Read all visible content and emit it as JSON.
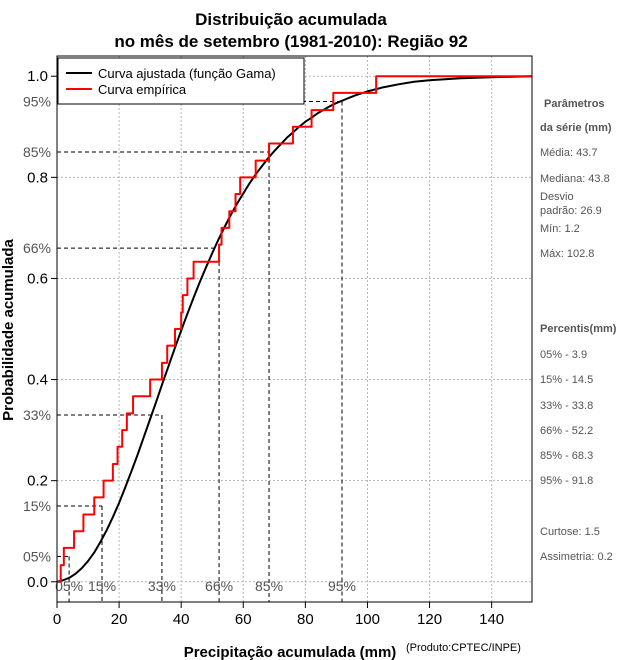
{
  "chart_data": {
    "type": "line",
    "title_line1": "Distribuição acumulada",
    "title_line2": "no mês de setembro (1981-2010): Região 92",
    "xlabel": "Precipitação acumulada (mm)",
    "xlabel_note": "(Produto:CPTEC/INPE)",
    "ylabel": "Probabilidade acumulada",
    "xlim": [
      0,
      153
    ],
    "ylim": [
      -0.04,
      1.04
    ],
    "x_ticks": [
      0,
      20,
      40,
      60,
      80,
      100,
      120,
      140
    ],
    "y_ticks": [
      0.0,
      0.2,
      0.4,
      0.6,
      0.8,
      1.0
    ],
    "y_tick_labels": [
      "0.0",
      "0.2",
      "0.4",
      "0.6",
      "0.8",
      "1.0"
    ],
    "grid": true,
    "legend_position": "top-left",
    "series": [
      {
        "name": "Curva ajustada (função Gama)",
        "color": "#000000",
        "x": [
          0,
          2,
          4,
          6,
          8,
          10,
          12,
          14,
          16,
          18,
          20,
          22,
          24,
          26,
          28,
          30,
          32,
          34,
          36,
          38,
          40,
          42,
          44,
          46,
          48,
          50,
          52,
          54,
          56,
          58,
          60,
          62,
          64,
          66,
          68,
          70,
          72,
          74,
          76,
          78,
          80,
          82,
          84,
          86,
          88,
          90,
          92,
          94,
          96,
          98,
          100,
          105,
          110,
          115,
          120,
          130,
          140,
          153
        ],
        "y": [
          0.0,
          0.003,
          0.008,
          0.016,
          0.027,
          0.041,
          0.058,
          0.079,
          0.102,
          0.128,
          0.156,
          0.187,
          0.219,
          0.252,
          0.287,
          0.322,
          0.357,
          0.393,
          0.428,
          0.463,
          0.497,
          0.53,
          0.562,
          0.593,
          0.622,
          0.65,
          0.677,
          0.702,
          0.726,
          0.748,
          0.768,
          0.788,
          0.806,
          0.822,
          0.838,
          0.852,
          0.865,
          0.878,
          0.889,
          0.9,
          0.91,
          0.918,
          0.927,
          0.934,
          0.941,
          0.947,
          0.952,
          0.957,
          0.962,
          0.966,
          0.97,
          0.978,
          0.984,
          0.989,
          0.992,
          0.996,
          0.998,
          1.0
        ]
      },
      {
        "name": "Curva empírica",
        "color": "#ff0000",
        "type": "step",
        "x": [
          0,
          1.2,
          2.2,
          5.5,
          8.5,
          12.0,
          15.0,
          18.0,
          19.5,
          21.0,
          22.5,
          24.5,
          28.0,
          30.0,
          33.8,
          35.5,
          38.0,
          40.0,
          40.5,
          42.0,
          44.0,
          46.0,
          47.5,
          49.0,
          50.5,
          52.2,
          53.0,
          55.5,
          57.5,
          59.0,
          60.5,
          64.0,
          65.0,
          68.3,
          70.0,
          76.0,
          82.0,
          89.0,
          94.0,
          102.8,
          153
        ],
        "y": [
          0.0,
          0.033,
          0.067,
          0.1,
          0.133,
          0.167,
          0.2,
          0.233,
          0.267,
          0.3,
          0.333,
          0.367,
          0.367,
          0.4,
          0.433,
          0.467,
          0.5,
          0.533,
          0.567,
          0.6,
          0.633,
          0.633,
          0.633,
          0.633,
          0.633,
          0.667,
          0.7,
          0.733,
          0.767,
          0.8,
          0.8,
          0.833,
          0.833,
          0.867,
          0.867,
          0.9,
          0.933,
          0.967,
          0.967,
          1.0,
          1.0
        ]
      }
    ],
    "percentile_markers": [
      {
        "prob": 0.05,
        "x": 3.9,
        "label_y": "05%",
        "label_x": "05%"
      },
      {
        "prob": 0.15,
        "x": 14.5,
        "label_y": "15%",
        "label_x": "15%"
      },
      {
        "prob": 0.33,
        "x": 33.8,
        "label_y": "33%",
        "label_x": "33%"
      },
      {
        "prob": 0.66,
        "x": 52.2,
        "label_y": "66%",
        "label_x": "66%"
      },
      {
        "prob": 0.85,
        "x": 68.3,
        "label_y": "85%",
        "label_x": "85%"
      },
      {
        "prob": 0.95,
        "x": 91.8,
        "label_y": "95%",
        "label_x": "95%"
      }
    ]
  },
  "side_panel": {
    "params_title_1": "Parâmetros",
    "params_title_2": "da série (mm)",
    "media": "Média: 43.7",
    "mediana": "Mediana: 43.8",
    "desvio_1": "Desvio",
    "desvio_2": "padrão: 26.9",
    "min": "Mín: 1.2",
    "max": "Máx: 102.8",
    "percentis_title": "Percentis(mm)",
    "p05": "05% - 3.9",
    "p15": "15% - 14.5",
    "p33": "33% - 33.8",
    "p66": "66% - 52.2",
    "p85": "85% - 68.3",
    "p95": "95% - 91.8",
    "curtose": "Curtose: 1.5",
    "assimetria": "Assimetria: 0.2"
  }
}
